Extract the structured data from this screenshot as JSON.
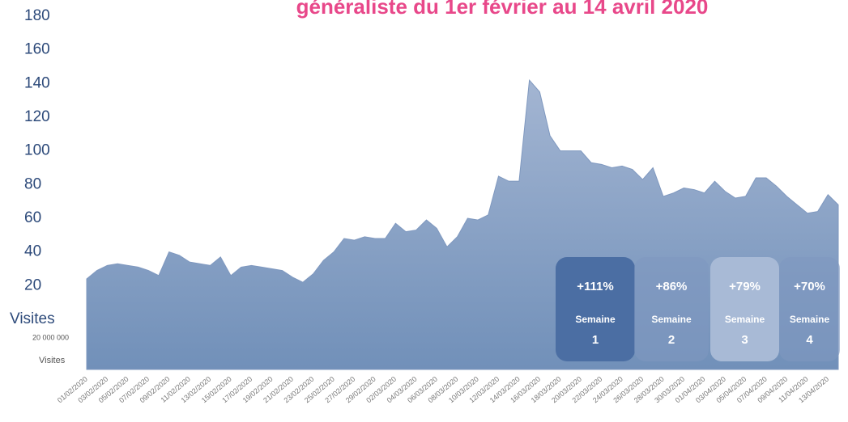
{
  "chart_data": {
    "type": "area",
    "title": "généraliste du 1er février au 14 avril 2020",
    "ylabel": "Visites",
    "annotations": [
      "20 000 000",
      "Visites"
    ],
    "boxes": [
      {
        "value": "+111%",
        "label": "Semaine",
        "number": "1",
        "color": "#4b6ea3"
      },
      {
        "value": "+86%",
        "label": "Semaine",
        "number": "2",
        "color": "#7f98bf"
      },
      {
        "value": "+79%",
        "label": "Semaine",
        "number": "3",
        "color": "#a8bad6"
      },
      {
        "value": "+70%",
        "label": "Semaine",
        "number": "4",
        "color": "#7f98bf"
      }
    ],
    "categories": [
      "01/02/2020",
      null,
      "03/02/2020",
      null,
      "05/02/2020",
      null,
      "07/02/2020",
      null,
      "09/02/2020",
      null,
      "11/02/2020",
      null,
      "13/02/2020",
      null,
      "15/02/2020",
      null,
      "17/02/2020",
      null,
      "19/02/2020",
      null,
      "21/02/2020",
      null,
      "23/02/2020",
      null,
      "25/02/2020",
      null,
      "27/02/2020",
      null,
      "29/02/2020",
      null,
      "02/03/2020",
      null,
      "04/03/2020",
      null,
      "06/03/2020",
      null,
      "08/03/2020",
      null,
      "10/03/2020",
      null,
      "12/03/2020",
      null,
      "14/03/2020",
      null,
      "16/03/2020",
      null,
      "18/03/2020",
      null,
      "20/03/2020",
      null,
      "22/03/2020",
      null,
      "24/03/2020",
      null,
      "26/03/2020",
      null,
      "28/03/2020",
      null,
      "30/03/2020",
      null,
      "01/04/2020",
      null,
      "03/04/2020",
      null,
      "05/04/2020",
      null,
      "07/04/2020",
      null,
      "09/04/2020",
      null,
      "11/04/2020",
      null,
      "13/04/2020",
      null
    ],
    "values": [
      24,
      29,
      32,
      33,
      32,
      31,
      29,
      26,
      40,
      38,
      34,
      33,
      32,
      37,
      26,
      31,
      32,
      31,
      30,
      29,
      25,
      22,
      27,
      35,
      40,
      48,
      47,
      49,
      48,
      48,
      57,
      52,
      53,
      59,
      54,
      43,
      49,
      60,
      59,
      62,
      85,
      82,
      82,
      142,
      135,
      109,
      100,
      100,
      100,
      93,
      92,
      90,
      91,
      89,
      83,
      90,
      73,
      75,
      78,
      77,
      75,
      82,
      76,
      72,
      73,
      84,
      84,
      79,
      73,
      68,
      63,
      64,
      74,
      68
    ],
    "color": "#7f98bf",
    "ylim": [
      0,
      180
    ],
    "yticks": [
      20,
      40,
      60,
      80,
      100,
      120,
      140,
      160,
      180
    ]
  }
}
